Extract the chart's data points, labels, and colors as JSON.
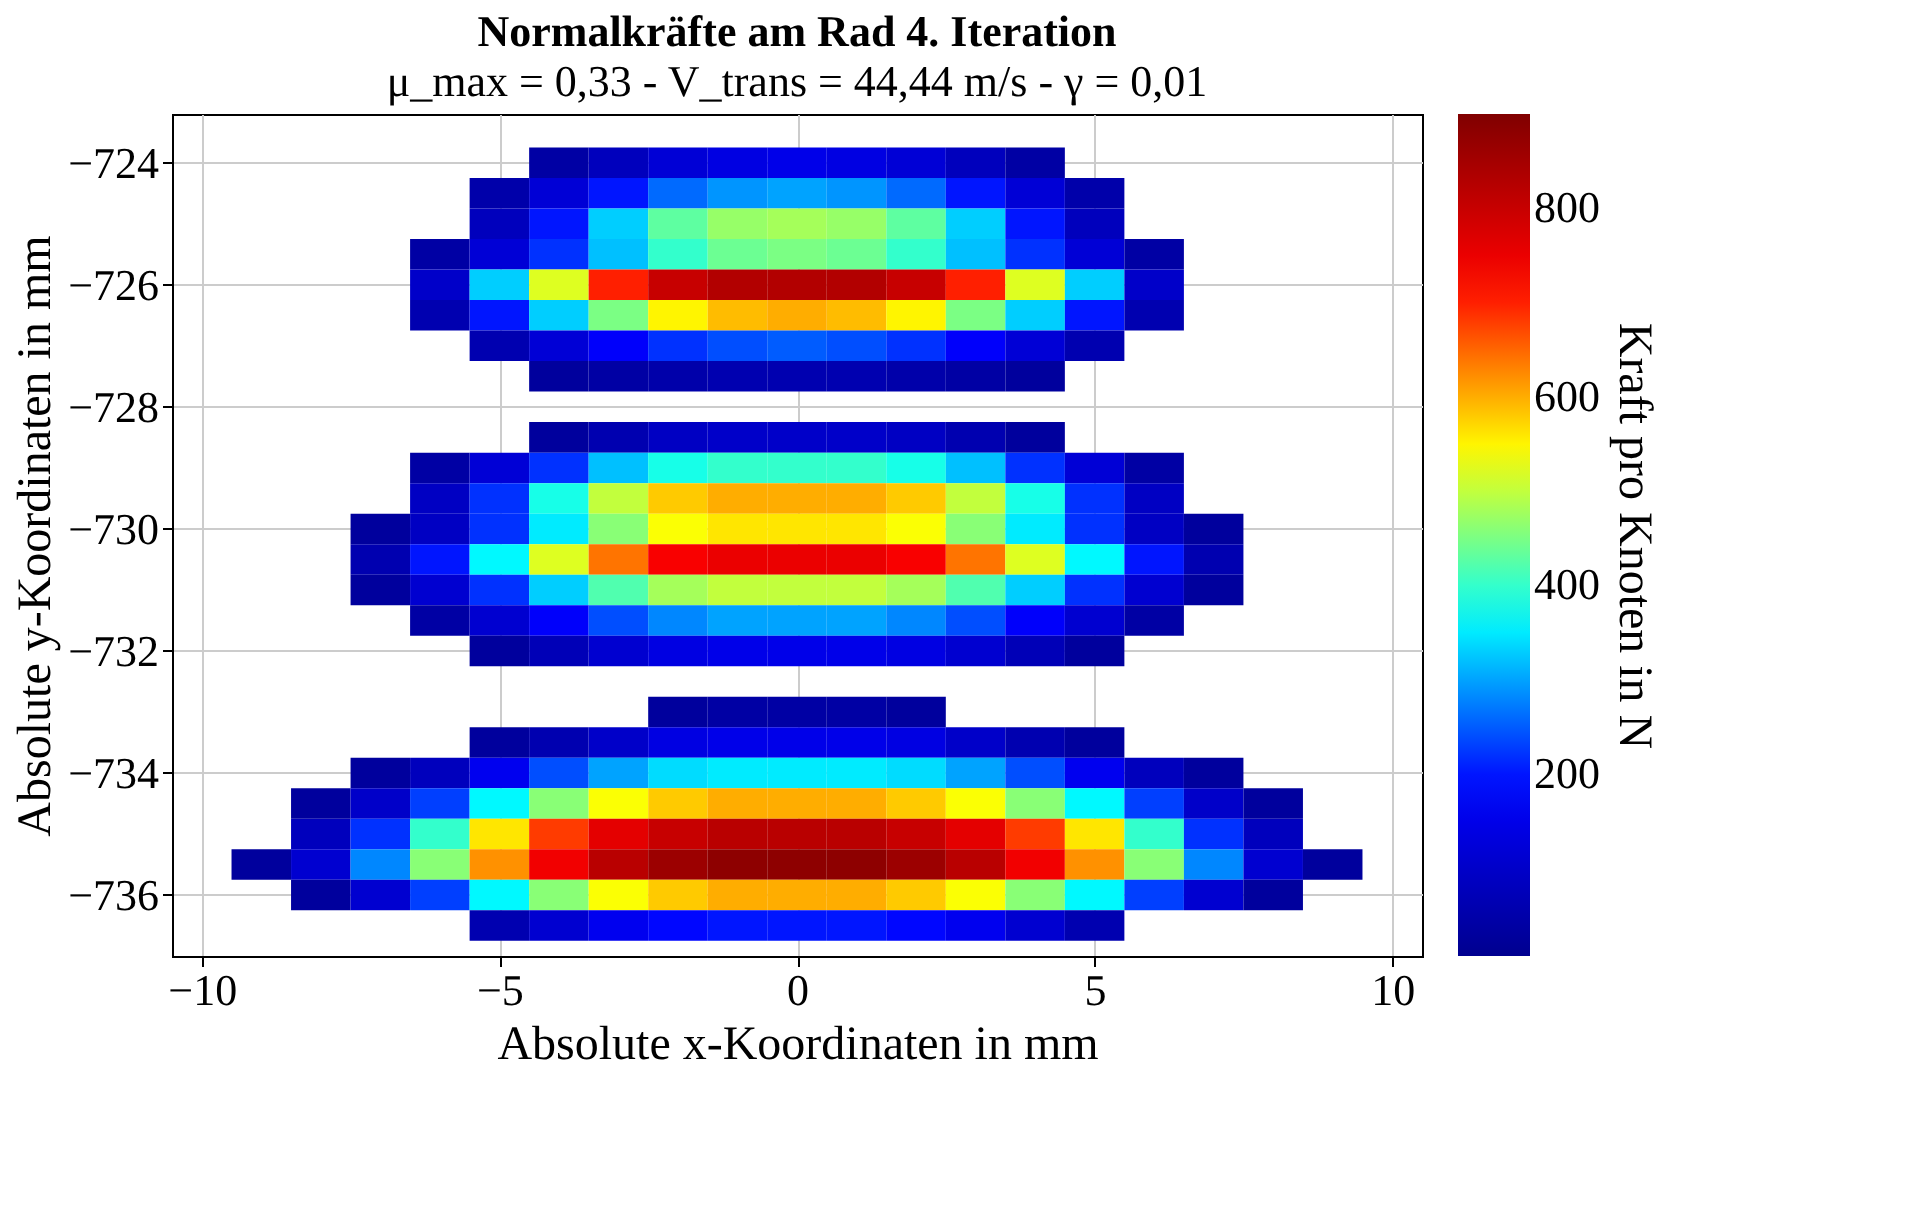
{
  "chart_data": {
    "type": "heatmap",
    "title": "Normalkräfte am Rad 4. Iteration",
    "subtitle": "μ_max = 0,33 - V_trans = 44,44 m/s - γ = 0,01",
    "xlabel": "Absolute x-Koordinaten in mm",
    "ylabel": "Absolute y-Koordinaten in mm",
    "clabel": "Kraft pro Knoten in N",
    "x": [
      -9,
      -8,
      -7,
      -6,
      -5,
      -4,
      -3,
      -2,
      -1,
      0,
      1,
      2,
      3,
      4,
      5,
      6,
      7,
      8,
      9
    ],
    "y": [
      -724,
      -724.5,
      -725,
      -725.5,
      -726,
      -726.5,
      -727,
      -727.5,
      -728.5,
      -729,
      -729.5,
      -730,
      -730.5,
      -731,
      -731.5,
      -732,
      -733,
      -733.5,
      -734,
      -734.5,
      -735,
      -735.5,
      -736,
      -736.5
    ],
    "cells": [
      [
        null,
        null,
        null,
        null,
        null,
        40,
        80,
        120,
        140,
        150,
        140,
        120,
        80,
        40,
        null,
        null,
        null,
        null,
        null
      ],
      [
        null,
        null,
        null,
        null,
        50,
        120,
        200,
        260,
        290,
        300,
        290,
        260,
        200,
        120,
        50,
        null,
        null,
        null,
        null
      ],
      [
        null,
        null,
        null,
        null,
        80,
        200,
        330,
        430,
        470,
        480,
        470,
        430,
        330,
        200,
        80,
        null,
        null,
        null,
        null
      ],
      [
        null,
        null,
        null,
        40,
        120,
        220,
        320,
        400,
        440,
        450,
        440,
        400,
        320,
        220,
        120,
        40,
        null,
        null,
        null
      ],
      [
        null,
        null,
        null,
        100,
        330,
        520,
        700,
        800,
        830,
        830,
        830,
        800,
        700,
        520,
        330,
        100,
        null,
        null,
        null
      ],
      [
        null,
        null,
        null,
        60,
        200,
        330,
        450,
        550,
        590,
        600,
        590,
        550,
        450,
        330,
        200,
        60,
        null,
        null,
        null
      ],
      [
        null,
        null,
        null,
        null,
        60,
        120,
        180,
        220,
        240,
        250,
        240,
        220,
        180,
        120,
        60,
        null,
        null,
        null,
        null
      ],
      [
        null,
        null,
        null,
        null,
        null,
        30,
        40,
        50,
        60,
        60,
        60,
        50,
        40,
        30,
        null,
        null,
        null,
        null,
        null
      ],
      [
        null,
        null,
        null,
        null,
        null,
        30,
        60,
        90,
        100,
        100,
        100,
        90,
        60,
        30,
        null,
        null,
        null,
        null,
        null
      ],
      [
        null,
        null,
        null,
        40,
        120,
        220,
        320,
        380,
        400,
        400,
        400,
        380,
        320,
        220,
        120,
        40,
        null,
        null,
        null
      ],
      [
        null,
        null,
        null,
        90,
        220,
        380,
        500,
        580,
        600,
        600,
        600,
        580,
        500,
        380,
        220,
        90,
        null,
        null,
        null
      ],
      [
        null,
        null,
        30,
        90,
        220,
        350,
        460,
        540,
        560,
        560,
        560,
        540,
        460,
        350,
        220,
        90,
        30,
        null,
        null
      ],
      [
        null,
        null,
        60,
        200,
        360,
        520,
        640,
        730,
        750,
        750,
        750,
        730,
        640,
        520,
        360,
        200,
        60,
        null,
        null
      ],
      [
        null,
        null,
        30,
        110,
        220,
        330,
        420,
        480,
        500,
        500,
        500,
        480,
        420,
        330,
        220,
        110,
        30,
        null,
        null
      ],
      [
        null,
        null,
        null,
        40,
        110,
        180,
        240,
        280,
        300,
        300,
        300,
        280,
        240,
        180,
        110,
        40,
        null,
        null,
        null
      ],
      [
        null,
        null,
        null,
        null,
        30,
        70,
        110,
        140,
        150,
        150,
        150,
        140,
        110,
        70,
        30,
        null,
        null,
        null,
        null
      ],
      [
        null,
        null,
        null,
        null,
        null,
        null,
        null,
        30,
        40,
        40,
        40,
        30,
        null,
        null,
        null,
        null,
        null,
        null,
        null
      ],
      [
        null,
        null,
        null,
        null,
        30,
        60,
        100,
        140,
        150,
        150,
        150,
        140,
        100,
        60,
        30,
        null,
        null,
        null,
        null
      ],
      [
        null,
        null,
        30,
        80,
        160,
        240,
        300,
        340,
        350,
        350,
        350,
        340,
        300,
        240,
        160,
        80,
        30,
        null,
        null
      ],
      [
        null,
        30,
        100,
        230,
        360,
        460,
        540,
        580,
        600,
        600,
        600,
        580,
        540,
        460,
        360,
        230,
        100,
        30,
        null
      ],
      [
        null,
        80,
        220,
        400,
        560,
        680,
        760,
        800,
        820,
        820,
        820,
        800,
        760,
        680,
        560,
        400,
        220,
        80,
        null
      ],
      [
        30,
        110,
        280,
        460,
        620,
        740,
        820,
        860,
        880,
        880,
        880,
        860,
        820,
        740,
        620,
        460,
        280,
        110,
        30
      ],
      [
        null,
        30,
        110,
        230,
        360,
        460,
        540,
        580,
        600,
        600,
        600,
        580,
        540,
        460,
        360,
        230,
        110,
        30,
        null
      ],
      [
        null,
        null,
        null,
        null,
        60,
        110,
        160,
        190,
        200,
        200,
        200,
        190,
        160,
        110,
        60,
        null,
        null,
        null,
        null
      ]
    ],
    "xlim": [
      -10.5,
      10.5
    ],
    "xticks": [
      -10,
      -5,
      0,
      5,
      10
    ],
    "ylim": [
      -737,
      -723.2
    ],
    "yticks": [
      -736,
      -734,
      -732,
      -730,
      -728,
      -726,
      -724
    ],
    "clim": [
      7,
      900
    ],
    "cticks": [
      200,
      400,
      600,
      800
    ],
    "colors": [
      "#00008f",
      "#0000ff",
      "#00ffff",
      "#ffff00",
      "#ff0000",
      "#800000"
    ],
    "grid": true
  }
}
